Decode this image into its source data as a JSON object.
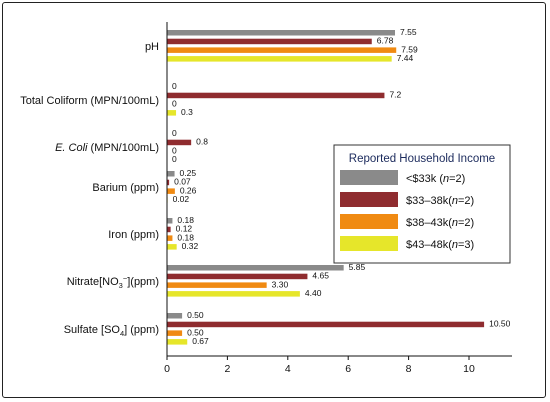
{
  "chart_data": {
    "type": "bar",
    "orientation": "horizontal",
    "categories": [
      "pH",
      "Total Coliform (MPN/100mL)",
      "E. Coli (MPN/100mL)",
      "Barium (ppm)",
      "Iron (ppm)",
      "Nitrate[NO3−](ppm)",
      "Sulfate [SO4] (ppm)"
    ],
    "series": [
      {
        "name": "<$33k (n=2)",
        "color": "#8a8a8a",
        "values": [
          7.55,
          0,
          0,
          0.25,
          0.18,
          5.85,
          0.5
        ],
        "labels": [
          "7.55",
          "0",
          "0",
          "0.25",
          "0.18",
          "5.85",
          "0.50"
        ]
      },
      {
        "name": "$33–38k(n=2)",
        "color": "#8f2c2f",
        "values": [
          6.78,
          7.2,
          0.8,
          0.07,
          0.12,
          4.65,
          10.5
        ],
        "labels": [
          "6.78",
          "7.2",
          "0.8",
          "0.07",
          "0.12",
          "4.65",
          "10.50"
        ]
      },
      {
        "name": "$38–43k(n=2)",
        "color": "#f08a12",
        "values": [
          7.59,
          0,
          0,
          0.26,
          0.18,
          3.3,
          0.5
        ],
        "labels": [
          "7.59",
          "0",
          "0",
          "0.26",
          "0.18",
          "3.30",
          "0.50"
        ]
      },
      {
        "name": "$43–48k(n=3)",
        "color": "#e6e62a",
        "values": [
          7.44,
          0.3,
          0,
          0.02,
          0.32,
          4.4,
          0.67
        ],
        "labels": [
          "7.44",
          "0.3",
          "0",
          "0.02",
          "0.32",
          "4.40",
          "0.67"
        ]
      }
    ],
    "xlim": [
      0,
      11
    ],
    "xticks": [
      "0",
      "2",
      "4",
      "6",
      "8",
      "10"
    ],
    "legend_title": "Reported Household Income",
    "legend_position": "right",
    "grid": false
  }
}
